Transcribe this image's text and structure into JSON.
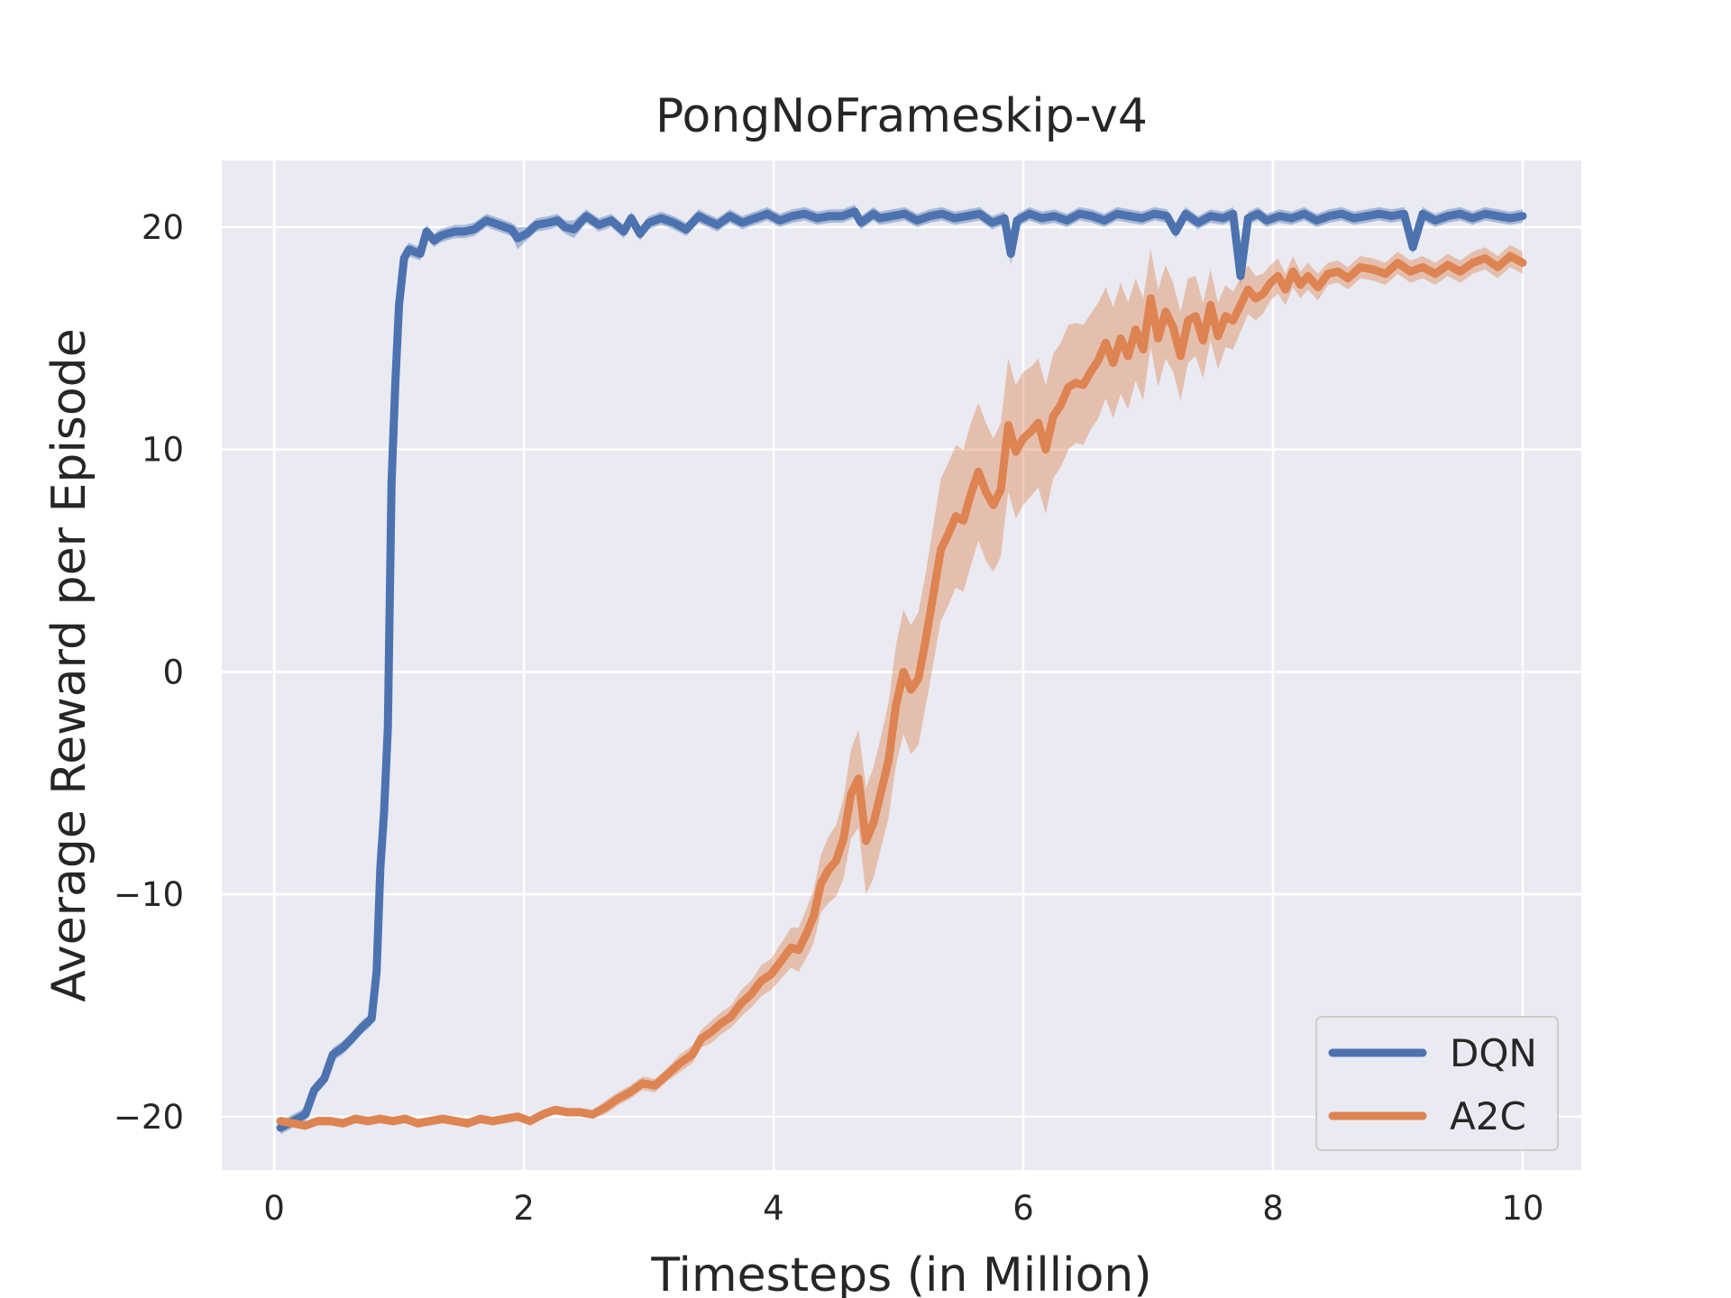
{
  "colors": {
    "background": "#ffffff",
    "plot_background": "#eaeaf2",
    "grid": "#ffffff",
    "text": "#262626",
    "dqn": "#4c72b0",
    "a2c": "#dd8452"
  },
  "chart_data": {
    "type": "line",
    "title": "PongNoFrameskip-v4",
    "xlabel": "Timesteps (in Million)",
    "ylabel": "Average Reward per Episode",
    "xlim": [
      -0.42,
      10.47
    ],
    "ylim": [
      -22.4,
      23.0
    ],
    "xticks": [
      0,
      2,
      4,
      6,
      8,
      10
    ],
    "xtick_labels": [
      "0",
      "2",
      "4",
      "6",
      "8",
      "10"
    ],
    "yticks": [
      -20,
      -10,
      0,
      10,
      20
    ],
    "ytick_labels": [
      "−20",
      "−10",
      "0",
      "10",
      "20"
    ],
    "grid": true,
    "legend_position": "lower-right",
    "series": [
      {
        "name": "DQN",
        "color": "#4c72b0",
        "x": [
          0.05,
          0.15,
          0.25,
          0.32,
          0.4,
          0.47,
          0.55,
          0.62,
          0.7,
          0.78,
          0.82,
          0.85,
          0.88,
          0.91,
          0.94,
          0.97,
          1.0,
          1.04,
          1.08,
          1.12,
          1.17,
          1.22,
          1.28,
          1.33,
          1.38,
          1.45,
          1.52,
          1.6,
          1.7,
          1.8,
          1.9,
          1.95,
          2.02,
          2.1,
          2.2,
          2.27,
          2.33,
          2.4,
          2.5,
          2.6,
          2.7,
          2.8,
          2.86,
          2.93,
          3.0,
          3.1,
          3.2,
          3.3,
          3.4,
          3.47,
          3.55,
          3.65,
          3.75,
          3.85,
          3.95,
          4.05,
          4.15,
          4.25,
          4.35,
          4.45,
          4.55,
          4.65,
          4.7,
          4.8,
          4.85,
          4.95,
          5.05,
          5.15,
          5.25,
          5.35,
          5.45,
          5.55,
          5.65,
          5.75,
          5.85,
          5.9,
          5.95,
          6.05,
          6.15,
          6.25,
          6.35,
          6.45,
          6.55,
          6.65,
          6.75,
          6.85,
          6.95,
          7.05,
          7.15,
          7.22,
          7.3,
          7.4,
          7.5,
          7.6,
          7.68,
          7.74,
          7.8,
          7.88,
          7.95,
          8.05,
          8.15,
          8.25,
          8.35,
          8.45,
          8.55,
          8.65,
          8.75,
          8.85,
          8.95,
          9.05,
          9.12,
          9.2,
          9.3,
          9.4,
          9.5,
          9.6,
          9.7,
          9.8,
          9.9,
          10.0
        ],
        "y": [
          -20.5,
          -20.2,
          -19.9,
          -18.8,
          -18.3,
          -17.2,
          -16.9,
          -16.5,
          -16.0,
          -15.6,
          -13.5,
          -8.8,
          -6.3,
          -2.5,
          8.5,
          13.0,
          16.5,
          18.6,
          19.0,
          18.9,
          18.8,
          19.8,
          19.4,
          19.6,
          19.7,
          19.8,
          19.8,
          19.9,
          20.3,
          20.1,
          19.9,
          19.5,
          19.7,
          20.1,
          20.2,
          20.3,
          20.0,
          19.9,
          20.5,
          20.1,
          20.3,
          19.8,
          20.4,
          19.7,
          20.2,
          20.4,
          20.2,
          19.9,
          20.5,
          20.3,
          20.1,
          20.5,
          20.2,
          20.4,
          20.6,
          20.3,
          20.5,
          20.6,
          20.4,
          20.5,
          20.5,
          20.7,
          20.2,
          20.6,
          20.4,
          20.5,
          20.6,
          20.3,
          20.5,
          20.6,
          20.4,
          20.5,
          20.6,
          20.2,
          20.4,
          18.8,
          20.3,
          20.6,
          20.4,
          20.5,
          20.3,
          20.6,
          20.5,
          20.3,
          20.6,
          20.5,
          20.4,
          20.6,
          20.5,
          19.8,
          20.6,
          20.2,
          20.5,
          20.4,
          20.6,
          17.8,
          20.4,
          20.6,
          20.3,
          20.5,
          20.4,
          20.6,
          20.3,
          20.5,
          20.6,
          20.4,
          20.5,
          20.6,
          20.5,
          20.6,
          19.1,
          20.6,
          20.3,
          20.5,
          20.6,
          20.4,
          20.6,
          20.5,
          20.4,
          20.5
        ],
        "band": [
          0.3,
          0.3,
          0.3,
          0.3,
          0.3,
          0.3,
          0.3,
          0.3,
          0.3,
          0.3,
          0.6,
          1.0,
          1.0,
          0.9,
          1.0,
          0.8,
          0.6,
          0.4,
          0.3,
          0.3,
          0.3,
          0.3,
          0.3,
          0.3,
          0.3,
          0.3,
          0.3,
          0.3,
          0.3,
          0.3,
          0.3,
          0.5,
          0.3,
          0.3,
          0.3,
          0.3,
          0.3,
          0.4,
          0.3,
          0.3,
          0.3,
          0.3,
          0.3,
          0.3,
          0.3,
          0.3,
          0.3,
          0.3,
          0.3,
          0.3,
          0.3,
          0.3,
          0.3,
          0.3,
          0.3,
          0.3,
          0.3,
          0.3,
          0.3,
          0.3,
          0.3,
          0.3,
          0.3,
          0.3,
          0.3,
          0.3,
          0.3,
          0.3,
          0.3,
          0.3,
          0.3,
          0.3,
          0.3,
          0.3,
          0.3,
          0.5,
          0.3,
          0.3,
          0.3,
          0.3,
          0.3,
          0.3,
          0.3,
          0.3,
          0.3,
          0.3,
          0.3,
          0.3,
          0.3,
          0.3,
          0.3,
          0.3,
          0.3,
          0.3,
          0.3,
          0.5,
          0.3,
          0.3,
          0.3,
          0.3,
          0.3,
          0.3,
          0.3,
          0.3,
          0.3,
          0.3,
          0.3,
          0.3,
          0.3,
          0.3,
          0.3,
          0.3,
          0.3,
          0.3,
          0.3,
          0.3,
          0.3,
          0.3,
          0.3,
          0.3
        ]
      },
      {
        "name": "A2C",
        "color": "#dd8452",
        "x": [
          0.05,
          0.15,
          0.25,
          0.35,
          0.45,
          0.55,
          0.65,
          0.75,
          0.85,
          0.95,
          1.05,
          1.15,
          1.25,
          1.35,
          1.45,
          1.55,
          1.65,
          1.75,
          1.85,
          1.95,
          2.05,
          2.15,
          2.25,
          2.35,
          2.45,
          2.55,
          2.65,
          2.75,
          2.85,
          2.95,
          3.05,
          3.15,
          3.25,
          3.35,
          3.42,
          3.5,
          3.58,
          3.66,
          3.74,
          3.82,
          3.9,
          3.98,
          4.06,
          4.14,
          4.2,
          4.26,
          4.32,
          4.38,
          4.44,
          4.5,
          4.56,
          4.62,
          4.68,
          4.74,
          4.8,
          4.86,
          4.92,
          4.98,
          5.04,
          5.1,
          5.16,
          5.22,
          5.28,
          5.34,
          5.4,
          5.46,
          5.52,
          5.58,
          5.64,
          5.7,
          5.76,
          5.82,
          5.88,
          5.94,
          6.0,
          6.06,
          6.12,
          6.18,
          6.24,
          6.3,
          6.36,
          6.42,
          6.48,
          6.54,
          6.6,
          6.66,
          6.72,
          6.78,
          6.84,
          6.9,
          6.96,
          7.02,
          7.08,
          7.14,
          7.2,
          7.26,
          7.32,
          7.38,
          7.44,
          7.5,
          7.56,
          7.62,
          7.68,
          7.74,
          7.8,
          7.86,
          7.92,
          7.98,
          8.04,
          8.1,
          8.16,
          8.22,
          8.28,
          8.36,
          8.44,
          8.52,
          8.6,
          8.7,
          8.8,
          8.9,
          9.0,
          9.1,
          9.2,
          9.3,
          9.4,
          9.5,
          9.6,
          9.7,
          9.8,
          9.9,
          10.0
        ],
        "y": [
          -20.2,
          -20.3,
          -20.4,
          -20.2,
          -20.2,
          -20.3,
          -20.1,
          -20.2,
          -20.1,
          -20.2,
          -20.1,
          -20.3,
          -20.2,
          -20.1,
          -20.2,
          -20.3,
          -20.1,
          -20.2,
          -20.1,
          -20.0,
          -20.2,
          -19.9,
          -19.7,
          -19.8,
          -19.8,
          -19.9,
          -19.6,
          -19.2,
          -18.9,
          -18.5,
          -18.6,
          -18.1,
          -17.6,
          -17.2,
          -16.5,
          -16.2,
          -15.8,
          -15.5,
          -14.9,
          -14.5,
          -13.9,
          -13.6,
          -13.0,
          -12.4,
          -12.5,
          -11.8,
          -11.0,
          -9.5,
          -8.9,
          -8.5,
          -7.5,
          -5.5,
          -4.8,
          -7.6,
          -6.8,
          -5.4,
          -4.0,
          -1.5,
          0.0,
          -0.8,
          -0.3,
          1.5,
          3.5,
          5.5,
          6.2,
          7.0,
          6.8,
          8.0,
          9.0,
          8.1,
          7.5,
          8.2,
          11.1,
          9.9,
          10.5,
          10.8,
          11.2,
          10.0,
          11.5,
          12.0,
          12.8,
          13.0,
          12.9,
          13.5,
          14.0,
          14.8,
          13.9,
          15.0,
          14.2,
          15.4,
          14.5,
          16.8,
          15.0,
          16.2,
          15.5,
          14.2,
          15.8,
          16.0,
          14.9,
          16.5,
          15.1,
          16.0,
          15.8,
          16.5,
          17.2,
          16.8,
          17.0,
          17.5,
          17.8,
          17.2,
          18.0,
          17.4,
          17.8,
          17.3,
          17.9,
          18.0,
          17.7,
          18.2,
          18.1,
          17.9,
          18.4,
          18.0,
          18.2,
          17.9,
          18.3,
          18.0,
          18.4,
          18.6,
          18.2,
          18.7,
          18.4
        ],
        "band": [
          0.2,
          0.2,
          0.2,
          0.2,
          0.2,
          0.2,
          0.2,
          0.2,
          0.2,
          0.2,
          0.2,
          0.2,
          0.2,
          0.2,
          0.2,
          0.2,
          0.2,
          0.2,
          0.2,
          0.2,
          0.2,
          0.2,
          0.2,
          0.2,
          0.2,
          0.2,
          0.3,
          0.3,
          0.3,
          0.3,
          0.3,
          0.3,
          0.4,
          0.4,
          0.4,
          0.5,
          0.5,
          0.5,
          0.6,
          0.6,
          0.7,
          0.7,
          0.8,
          0.9,
          1.0,
          1.1,
          1.2,
          1.3,
          1.5,
          1.6,
          1.8,
          2.0,
          2.2,
          2.4,
          2.5,
          2.5,
          2.6,
          2.7,
          2.8,
          2.9,
          3.0,
          3.0,
          3.1,
          3.2,
          3.2,
          3.2,
          3.2,
          3.2,
          3.1,
          3.1,
          3.0,
          3.0,
          3.0,
          3.0,
          3.0,
          2.9,
          2.9,
          2.9,
          2.8,
          2.8,
          2.8,
          2.7,
          2.7,
          2.6,
          2.6,
          2.5,
          2.5,
          2.5,
          2.4,
          2.3,
          2.3,
          2.2,
          2.2,
          2.1,
          2.0,
          2.0,
          1.9,
          1.8,
          1.7,
          1.6,
          1.5,
          1.4,
          1.3,
          1.2,
          1.1,
          1.0,
          0.9,
          0.8,
          0.8,
          0.7,
          0.7,
          0.6,
          0.6,
          0.6,
          0.5,
          0.5,
          0.5,
          0.5,
          0.5,
          0.5,
          0.5,
          0.5,
          0.5,
          0.5,
          0.5,
          0.5,
          0.5,
          0.5,
          0.5,
          0.5,
          0.5
        ]
      }
    ]
  }
}
